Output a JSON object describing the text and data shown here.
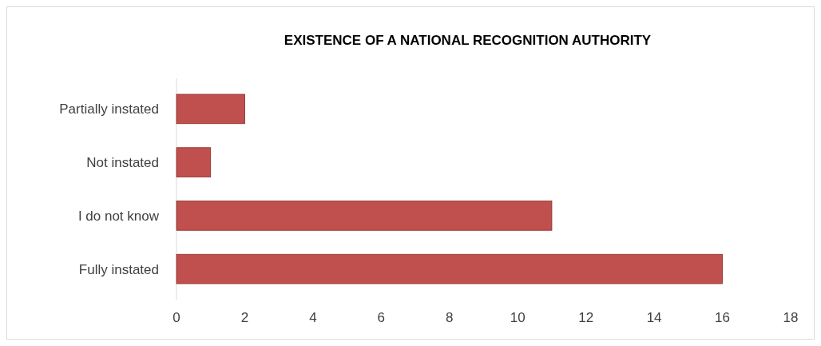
{
  "chart_data": {
    "type": "bar",
    "orientation": "horizontal",
    "title": "EXISTENCE OF A NATIONAL RECOGNITION AUTHORITY",
    "categories": [
      "Partially instated",
      "Not instated",
      "I do not know",
      "Fully instated"
    ],
    "values": [
      2,
      1,
      11,
      16
    ],
    "color": "#c0504d",
    "xlim": [
      0,
      18
    ],
    "xticks": [
      0,
      2,
      4,
      6,
      8,
      10,
      12,
      14,
      16,
      18
    ],
    "grid": false
  }
}
